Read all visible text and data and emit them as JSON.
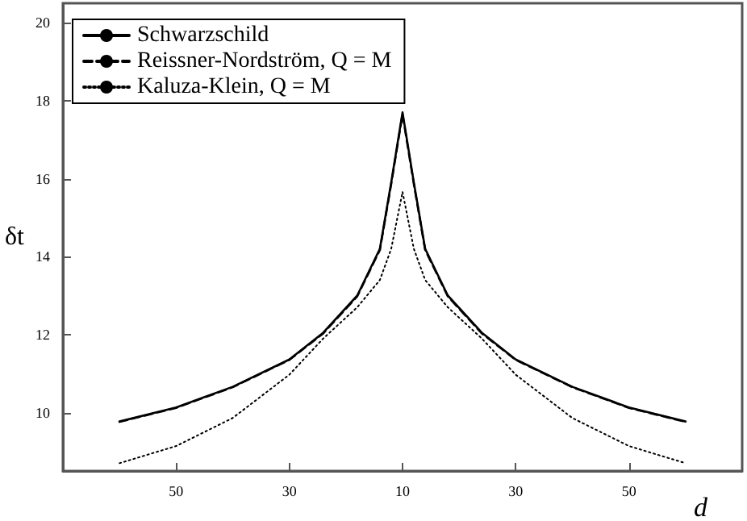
{
  "chart_data": {
    "type": "line",
    "xlabel": "d",
    "ylabel": "δt",
    "categories": [
      null,
      null,
      null,
      null,
      null,
      null,
      null,
      null,
      null,
      null,
      "50",
      null,
      null,
      null,
      null,
      null,
      null,
      null,
      null,
      null,
      "30",
      null,
      null,
      null,
      null,
      null,
      null,
      null,
      null,
      null,
      "10",
      null,
      null,
      null,
      null,
      null,
      null,
      null,
      null,
      null,
      "30",
      null,
      null,
      null,
      null,
      null,
      null,
      null,
      null,
      null,
      "50",
      null,
      null,
      null,
      null,
      null,
      null,
      null,
      null,
      null,
      null
    ],
    "series": [
      {
        "name": "Schwarzschild",
        "color": "#000000",
        "line_style": "solid",
        "values": [
          null,
          null,
          null,
          null,
          null,
          9.77,
          null,
          null,
          null,
          null,
          10.13,
          null,
          null,
          null,
          null,
          10.66,
          null,
          null,
          null,
          null,
          11.36,
          null,
          null,
          12.05,
          null,
          null,
          13.0,
          null,
          14.2,
          15.9,
          17.7,
          15.9,
          14.2,
          null,
          13.0,
          null,
          null,
          12.05,
          null,
          null,
          11.36,
          null,
          null,
          null,
          null,
          10.66,
          null,
          null,
          null,
          null,
          10.13,
          null,
          null,
          null,
          null,
          9.77,
          null,
          null,
          null,
          null,
          null
        ]
      },
      {
        "name": "Reissner-Nordström, Q = M",
        "color": "#000000",
        "line_style": "dashed",
        "values": [
          null,
          null,
          null,
          null,
          null,
          9.76,
          null,
          null,
          null,
          null,
          10.12,
          null,
          null,
          null,
          null,
          10.65,
          null,
          null,
          null,
          null,
          11.35,
          null,
          null,
          12.03,
          null,
          null,
          12.98,
          null,
          14.17,
          15.86,
          17.65,
          15.86,
          14.17,
          null,
          12.98,
          null,
          null,
          12.03,
          null,
          null,
          11.35,
          null,
          null,
          null,
          null,
          10.65,
          null,
          null,
          null,
          null,
          10.12,
          null,
          null,
          null,
          null,
          9.76,
          null,
          null,
          null,
          null,
          null
        ]
      },
      {
        "name": "Kaluza-Klein, Q = M",
        "color": "#000000",
        "line_style": "dotted",
        "values": [
          null,
          null,
          null,
          null,
          null,
          8.7,
          null,
          null,
          null,
          null,
          9.14,
          null,
          null,
          null,
          null,
          9.86,
          null,
          null,
          null,
          null,
          10.97,
          null,
          null,
          11.9,
          null,
          null,
          12.7,
          null,
          13.4,
          14.2,
          15.66,
          14.2,
          13.4,
          null,
          12.7,
          null,
          null,
          11.9,
          null,
          null,
          10.97,
          null,
          null,
          null,
          null,
          9.86,
          null,
          null,
          null,
          null,
          9.14,
          null,
          null,
          null,
          null,
          8.7,
          null,
          null,
          null,
          null,
          null
        ]
      }
    ],
    "ylim": [
      8.5,
      20.5
    ],
    "yticks": [
      10,
      12,
      14,
      16,
      18,
      20
    ],
    "grid": false,
    "legend": "top left",
    "marker": "none"
  }
}
